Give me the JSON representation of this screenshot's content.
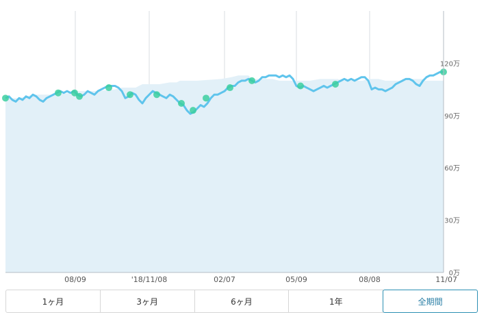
{
  "chart_data": {
    "type": "line",
    "title": "",
    "xlabel": "",
    "ylabel": "",
    "x_ticks": [
      "08/09",
      "'18/11/08",
      "02/07",
      "05/09",
      "08/08",
      "11/07"
    ],
    "y_ticks": [
      "0万",
      "30万",
      "60万",
      "90万",
      "120万"
    ],
    "ylim": [
      0,
      150
    ],
    "grid": "vertical",
    "series": [
      {
        "kind": "area",
        "points": [
          [
            0,
            100
          ],
          [
            20,
            100
          ],
          [
            40,
            102
          ],
          [
            70,
            102
          ],
          [
            96,
            103
          ],
          [
            104,
            104
          ],
          [
            130,
            104
          ],
          [
            160,
            105
          ],
          [
            170,
            106
          ],
          [
            190,
            106
          ],
          [
            200,
            108
          ],
          [
            225,
            108
          ],
          [
            240,
            109
          ],
          [
            250,
            109
          ],
          [
            255,
            110
          ],
          [
            280,
            110
          ],
          [
            315,
            111
          ],
          [
            330,
            112
          ],
          [
            340,
            113
          ],
          [
            355,
            113
          ],
          [
            360,
            111
          ],
          [
            390,
            111
          ],
          [
            400,
            110
          ],
          [
            445,
            110
          ],
          [
            460,
            111
          ],
          [
            485,
            111
          ],
          [
            495,
            110
          ],
          [
            522,
            110
          ],
          [
            530,
            111
          ],
          [
            545,
            111
          ],
          [
            555,
            110
          ],
          [
            578,
            110
          ],
          [
            580,
            111
          ],
          [
            610,
            111
          ],
          [
            613,
            110
          ],
          [
            640,
            110
          ]
        ]
      },
      {
        "kind": "line",
        "points": [
          [
            0,
            100
          ],
          [
            5,
            101
          ],
          [
            10,
            99
          ],
          [
            15,
            98
          ],
          [
            20,
            100
          ],
          [
            25,
            99
          ],
          [
            30,
            101
          ],
          [
            35,
            100
          ],
          [
            40,
            102
          ],
          [
            45,
            101
          ],
          [
            50,
            99
          ],
          [
            55,
            98
          ],
          [
            60,
            100
          ],
          [
            65,
            101
          ],
          [
            70,
            102
          ],
          [
            75,
            103
          ],
          [
            80,
            104
          ],
          [
            85,
            103
          ],
          [
            90,
            104
          ],
          [
            95,
            103
          ],
          [
            100,
            104
          ],
          [
            105,
            102
          ],
          [
            110,
            101
          ],
          [
            115,
            102
          ],
          [
            120,
            104
          ],
          [
            125,
            103
          ],
          [
            130,
            102
          ],
          [
            135,
            104
          ],
          [
            140,
            105
          ],
          [
            145,
            106
          ],
          [
            150,
            107
          ],
          [
            155,
            107
          ],
          [
            160,
            107
          ],
          [
            165,
            106
          ],
          [
            170,
            104
          ],
          [
            175,
            100
          ],
          [
            180,
            101
          ],
          [
            185,
            103
          ],
          [
            190,
            102
          ],
          [
            195,
            99
          ],
          [
            200,
            97
          ],
          [
            205,
            100
          ],
          [
            210,
            102
          ],
          [
            215,
            104
          ],
          [
            220,
            103
          ],
          [
            225,
            102
          ],
          [
            230,
            101
          ],
          [
            235,
            100
          ],
          [
            240,
            102
          ],
          [
            245,
            101
          ],
          [
            250,
            99
          ],
          [
            255,
            97
          ],
          [
            260,
            96
          ],
          [
            265,
            93
          ],
          [
            270,
            91
          ],
          [
            275,
            92
          ],
          [
            280,
            94
          ],
          [
            285,
            96
          ],
          [
            290,
            95
          ],
          [
            295,
            97
          ],
          [
            300,
            100
          ],
          [
            305,
            102
          ],
          [
            310,
            102
          ],
          [
            315,
            103
          ],
          [
            320,
            104
          ],
          [
            325,
            106
          ],
          [
            330,
            107
          ],
          [
            335,
            107
          ],
          [
            340,
            109
          ],
          [
            345,
            110
          ],
          [
            350,
            110
          ],
          [
            355,
            111
          ],
          [
            360,
            110
          ],
          [
            365,
            109
          ],
          [
            370,
            110
          ],
          [
            375,
            112
          ],
          [
            380,
            112
          ],
          [
            385,
            113
          ],
          [
            390,
            113
          ],
          [
            395,
            113
          ],
          [
            400,
            112
          ],
          [
            405,
            113
          ],
          [
            410,
            112
          ],
          [
            415,
            113
          ],
          [
            420,
            111
          ],
          [
            425,
            107
          ],
          [
            430,
            106
          ],
          [
            435,
            107
          ],
          [
            440,
            106
          ],
          [
            445,
            105
          ],
          [
            450,
            104
          ],
          [
            455,
            105
          ],
          [
            460,
            106
          ],
          [
            465,
            107
          ],
          [
            470,
            106
          ],
          [
            475,
            107
          ],
          [
            480,
            108
          ],
          [
            485,
            109
          ],
          [
            490,
            110
          ],
          [
            495,
            111
          ],
          [
            500,
            110
          ],
          [
            505,
            111
          ],
          [
            510,
            110
          ],
          [
            515,
            111
          ],
          [
            520,
            112
          ],
          [
            525,
            112
          ],
          [
            530,
            110
          ],
          [
            535,
            105
          ],
          [
            540,
            106
          ],
          [
            545,
            105
          ],
          [
            550,
            105
          ],
          [
            555,
            104
          ],
          [
            560,
            105
          ],
          [
            565,
            106
          ],
          [
            570,
            108
          ],
          [
            575,
            109
          ],
          [
            580,
            110
          ],
          [
            585,
            111
          ],
          [
            590,
            111
          ],
          [
            595,
            110
          ],
          [
            600,
            108
          ],
          [
            605,
            107
          ],
          [
            610,
            110
          ],
          [
            615,
            112
          ],
          [
            620,
            113
          ],
          [
            625,
            113
          ],
          [
            630,
            114
          ],
          [
            635,
            115
          ],
          [
            640,
            115
          ]
        ]
      }
    ],
    "markers": [
      [
        0,
        100
      ],
      [
        77,
        103
      ],
      [
        101,
        103
      ],
      [
        108,
        101
      ],
      [
        151,
        106
      ],
      [
        182,
        102
      ],
      [
        221,
        102
      ],
      [
        257,
        97
      ],
      [
        274,
        93
      ],
      [
        293,
        100
      ],
      [
        328,
        106
      ],
      [
        360,
        110
      ],
      [
        431,
        107
      ],
      [
        482,
        108
      ],
      [
        640,
        115
      ]
    ],
    "colors": {
      "line": "#5fc4ec",
      "area": "#e2f0f8",
      "marker": "#3ccfa0",
      "grid": "#d8dde2",
      "axis": "#b5bcc4"
    }
  },
  "tabs": [
    {
      "label": "1ヶ月",
      "active": false
    },
    {
      "label": "3ヶ月",
      "active": false
    },
    {
      "label": "6ヶ月",
      "active": false
    },
    {
      "label": "1年",
      "active": false
    },
    {
      "label": "全期間",
      "active": true
    }
  ]
}
